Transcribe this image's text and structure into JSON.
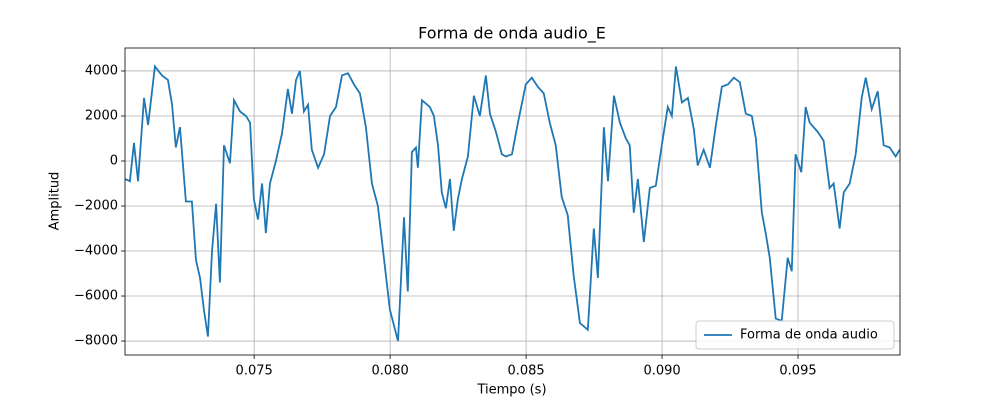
{
  "chart_data": {
    "type": "line",
    "title": "Forma de onda audio_E",
    "xlabel": "Tiempo (s)",
    "ylabel": "Amplitud",
    "x": [
      0.07025,
      0.07043,
      0.07058,
      0.07073,
      0.07095,
      0.0711,
      0.07135,
      0.07161,
      0.07183,
      0.07198,
      0.07212,
      0.07227,
      0.07249,
      0.07271,
      0.07286,
      0.07301,
      0.07315,
      0.0733,
      0.07345,
      0.0736,
      0.07374,
      0.07389,
      0.07411,
      0.07426,
      0.07448,
      0.0747,
      0.07485,
      0.07499,
      0.07514,
      0.07529,
      0.07543,
      0.07558,
      0.0758,
      0.07602,
      0.07624,
      0.07639,
      0.07654,
      0.07668,
      0.07683,
      0.07698,
      0.07712,
      0.07735,
      0.07757,
      0.07779,
      0.07801,
      0.07823,
      0.07845,
      0.07867,
      0.07889,
      0.07911,
      0.07933,
      0.07955,
      0.07977,
      0.07999,
      0.08029,
      0.08051,
      0.08065,
      0.0808,
      0.08095,
      0.08102,
      0.08117,
      0.08146,
      0.08161,
      0.08176,
      0.0819,
      0.08205,
      0.0822,
      0.08234,
      0.08249,
      0.08264,
      0.08286,
      0.08308,
      0.0833,
      0.08352,
      0.08367,
      0.08389,
      0.08411,
      0.08426,
      0.08448,
      0.0847,
      0.08499,
      0.08521,
      0.08543,
      0.08565,
      0.08587,
      0.08609,
      0.08631,
      0.08653,
      0.08675,
      0.08698,
      0.08727,
      0.08749,
      0.08764,
      0.08786,
      0.08801,
      0.08823,
      0.08845,
      0.08867,
      0.08881,
      0.08896,
      0.08911,
      0.08933,
      0.08955,
      0.08977,
      0.08999,
      0.09021,
      0.09036,
      0.09051,
      0.09073,
      0.09095,
      0.09117,
      0.09131,
      0.09153,
      0.09176,
      0.09198,
      0.0922,
      0.09242,
      0.09264,
      0.09286,
      0.09308,
      0.0933,
      0.09345,
      0.09367,
      0.09381,
      0.09396,
      0.09418,
      0.0944,
      0.09462,
      0.09477,
      0.09491,
      0.09512,
      0.09528,
      0.09543,
      0.09572,
      0.09594,
      0.09616,
      0.09631,
      0.09653,
      0.09668,
      0.0969,
      0.09712,
      0.09734,
      0.09749,
      0.09771,
      0.09793,
      0.09815,
      0.09837,
      0.09859,
      0.09874
    ],
    "series": [
      {
        "name": "Forma de onda audio",
        "color": "#1f77b4",
        "values": [
          -800,
          -900,
          800,
          -900,
          2800,
          1600,
          4200,
          3800,
          3600,
          2500,
          600,
          1500,
          -1800,
          -1800,
          -4400,
          -5200,
          -6600,
          -7800,
          -4000,
          -1900,
          -5400,
          700,
          -100,
          2700,
          2200,
          2000,
          1700,
          -1700,
          -2600,
          -1000,
          -3200,
          -1000,
          0,
          1200,
          3200,
          2100,
          3600,
          4000,
          2200,
          2500,
          500,
          -300,
          300,
          2000,
          2400,
          3800,
          3900,
          3400,
          3000,
          1500,
          -1000,
          -2000,
          -4300,
          -6600,
          -8000,
          -2500,
          -5800,
          400,
          600,
          -300,
          2700,
          2400,
          2000,
          700,
          -1400,
          -2100,
          -800,
          -3100,
          -1700,
          -800,
          200,
          2900,
          2000,
          3800,
          2100,
          1300,
          300,
          200,
          300,
          1700,
          3400,
          3700,
          3300,
          3000,
          1700,
          700,
          -1600,
          -2400,
          -5100,
          -7200,
          -7500,
          -3000,
          -5200,
          1500,
          -900,
          2900,
          1700,
          1000,
          700,
          -2300,
          -800,
          -3600,
          -1200,
          -1100,
          700,
          2400,
          2000,
          4200,
          2600,
          2800,
          1400,
          -200,
          500,
          -300,
          1600,
          3300,
          3400,
          3700,
          3500,
          2100,
          2000,
          1000,
          -2300,
          -3200,
          -4300,
          -7000,
          -7100,
          -4300,
          -4900,
          300,
          -500,
          2400,
          1700,
          1300,
          900,
          -1200,
          -1000,
          -3000,
          -1400,
          -1000,
          300,
          2800,
          3700,
          2300,
          3100,
          700,
          600,
          200,
          500
        ]
      }
    ],
    "xlim": [
      0.07025,
      0.09875
    ],
    "xticks": [
      0.075,
      {
        "value": 0.08,
        "label": "0.080"
      },
      0.085,
      {
        "value": 0.09,
        "label": "0.090"
      },
      0.095
    ],
    "ylim": [
      -8620,
      5020
    ],
    "yticks": [
      {
        "value": -8000,
        "label": "−8000"
      },
      {
        "value": -6000,
        "label": "−6000"
      },
      {
        "value": -4000,
        "label": "−4000"
      },
      {
        "value": -2000,
        "label": "−2000"
      },
      0,
      2000,
      4000
    ],
    "grid": true,
    "legend": "lower right"
  }
}
